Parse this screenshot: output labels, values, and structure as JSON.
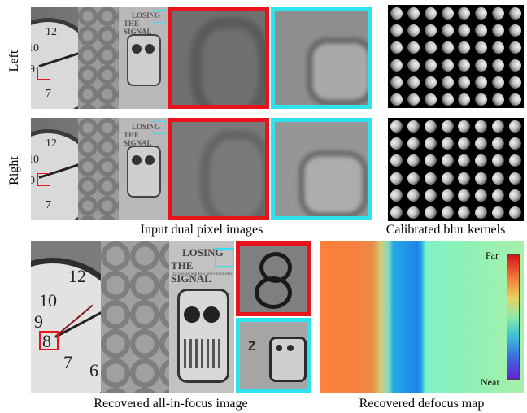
{
  "row_labels": {
    "left": "Left",
    "right": "Right"
  },
  "captions": {
    "input": "Input dual pixel images",
    "kernels": "Calibrated blur kernels",
    "recovered_aif": "Recovered all-in-focus image",
    "recovered_defocus": "Recovered defocus map"
  },
  "scene_text": {
    "line1": "LOSING",
    "line2": "THE SIGNAL",
    "subtitle": "The Spectacular Rise and Fall of BlackBerry"
  },
  "clock_numerals": [
    "12",
    "10",
    "9",
    "8",
    "7",
    "6"
  ],
  "colorbar": {
    "top": "Far",
    "bottom": "Near"
  },
  "colors": {
    "red_box": "#e8131b",
    "cyan_box": "#2ee3ee"
  },
  "kernels": {
    "rows": 6,
    "cols": 8
  }
}
